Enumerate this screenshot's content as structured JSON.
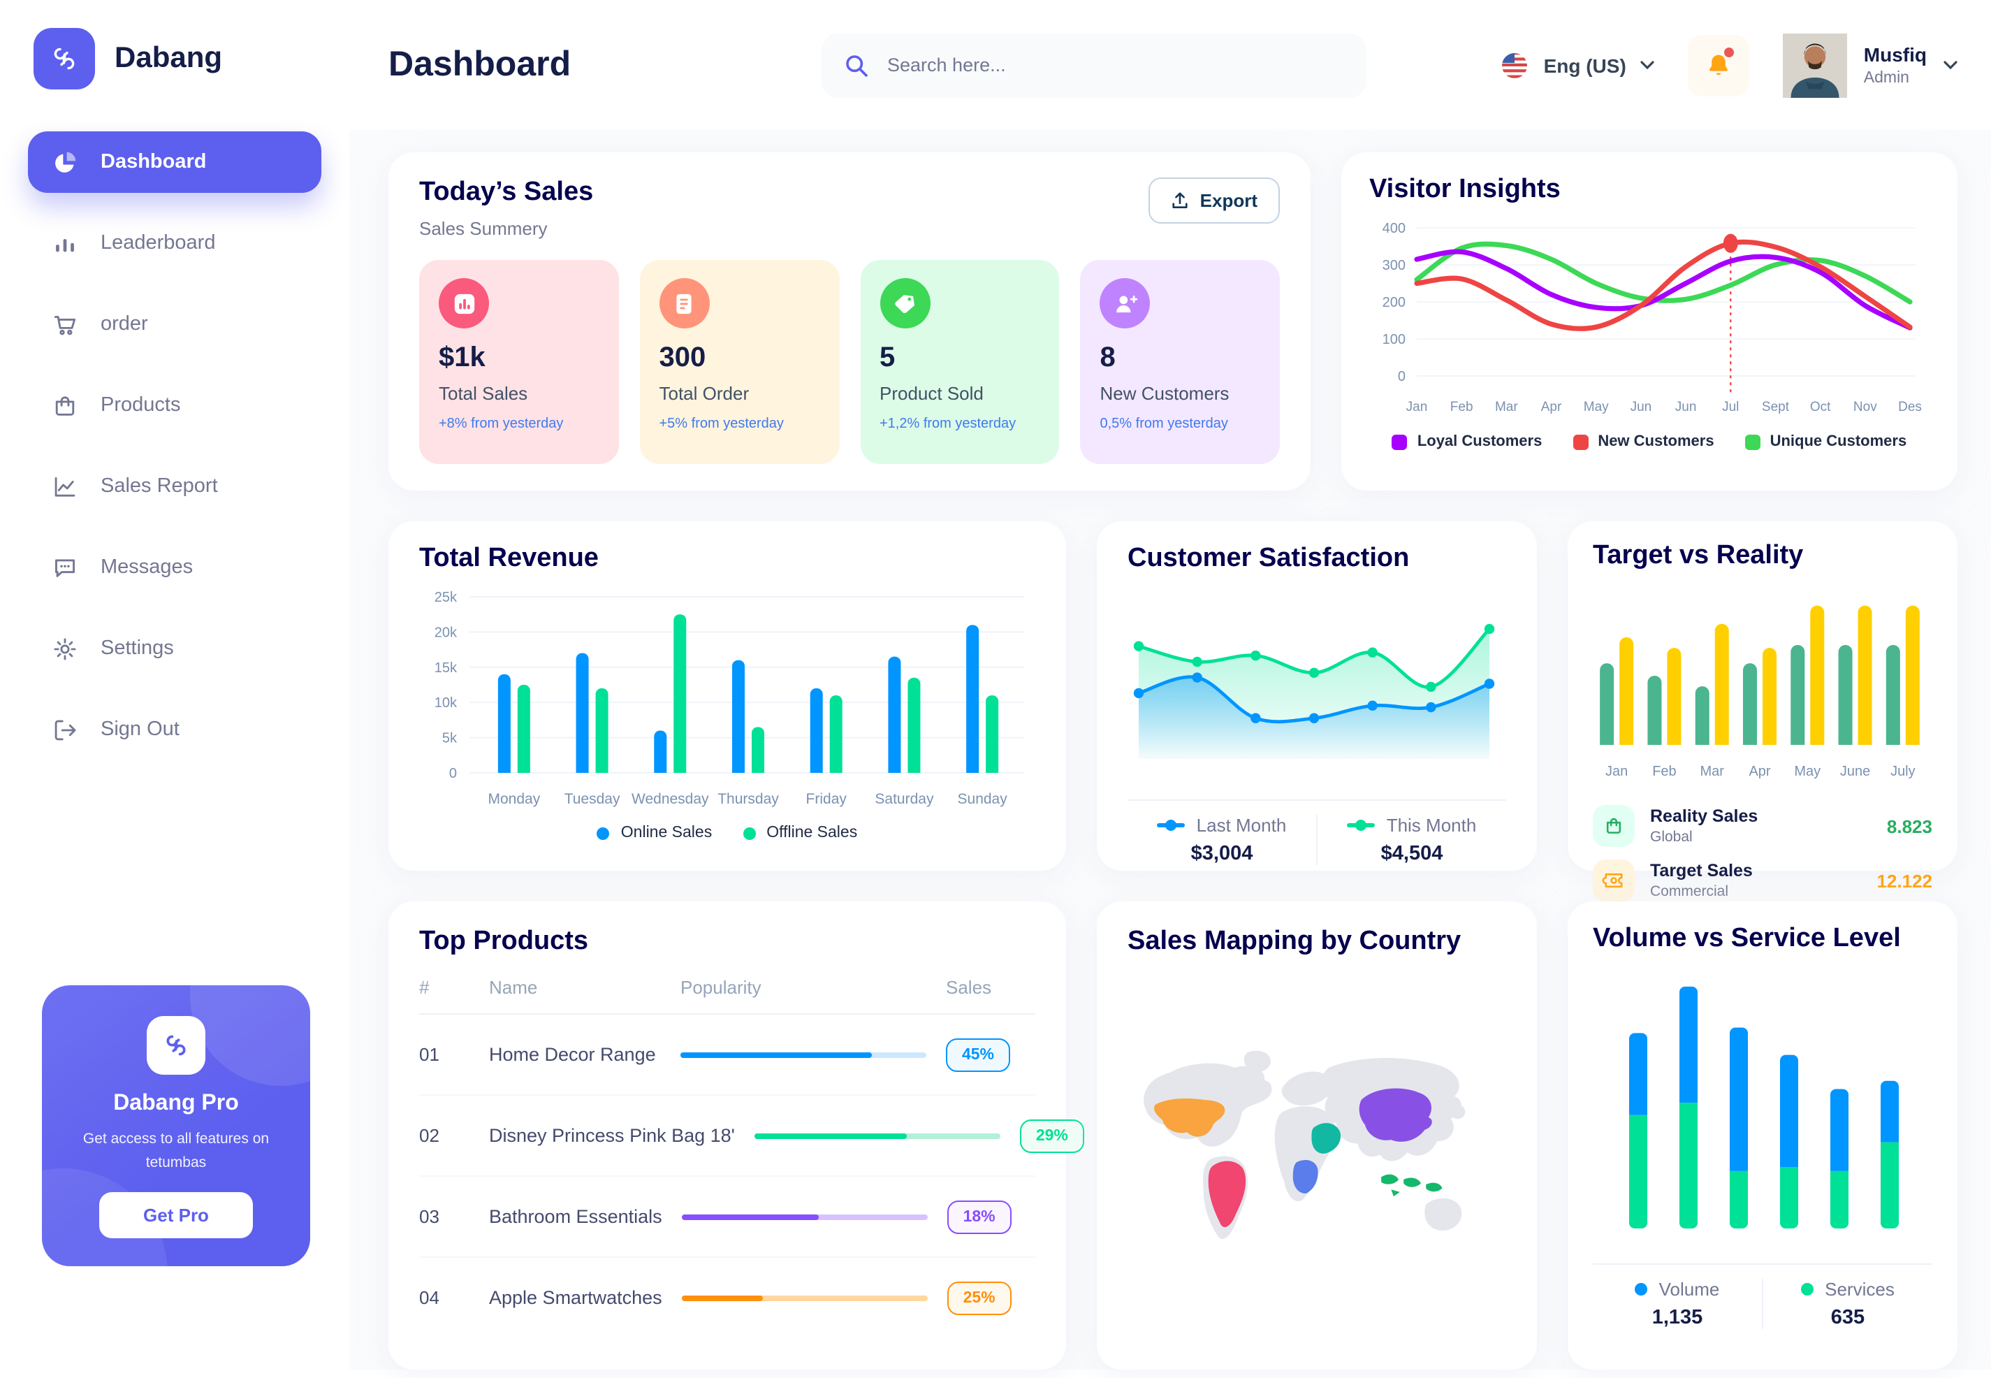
{
  "app": {
    "brand": "Dabang"
  },
  "header": {
    "title": "Dashboard",
    "search_placeholder": "Search here...",
    "language": "Eng (US)",
    "user": {
      "name": "Musfiq",
      "role": "Admin"
    }
  },
  "sidebar": {
    "items": [
      {
        "label": "Dashboard",
        "icon": "dashboard-icon",
        "active": true
      },
      {
        "label": "Leaderboard",
        "icon": "leaderboard-icon",
        "active": false
      },
      {
        "label": "order",
        "icon": "cart-icon",
        "active": false
      },
      {
        "label": "Products",
        "icon": "bag-icon",
        "active": false
      },
      {
        "label": "Sales Report",
        "icon": "line-chart-icon",
        "active": false
      },
      {
        "label": "Messages",
        "icon": "message-icon",
        "active": false
      },
      {
        "label": "Settings",
        "icon": "gear-icon",
        "active": false
      },
      {
        "label": "Sign Out",
        "icon": "signout-icon",
        "active": false
      }
    ],
    "pro": {
      "title": "Dabang Pro",
      "desc": "Get access to all features on tetumbas",
      "button": "Get Pro"
    }
  },
  "todays_sales": {
    "title": "Today’s Sales",
    "subtitle": "Sales Summery",
    "export_label": "Export",
    "cards": [
      {
        "icon": "sales-stat-icon",
        "value": "$1k",
        "label": "Total Sales",
        "delta": "+8% from yesterday",
        "bg": "#FFE2E5",
        "icon_bg": "#FA5A7D",
        "delta_color": "#4079ED"
      },
      {
        "icon": "order-stat-icon",
        "value": "300",
        "label": "Total Order",
        "delta": "+5% from yesterday",
        "bg": "#FFF4DE",
        "icon_bg": "#FF947A",
        "delta_color": "#4079ED"
      },
      {
        "icon": "product-stat-icon",
        "value": "5",
        "label": "Product Sold",
        "delta": "+1,2% from yesterday",
        "bg": "#DCFCE7",
        "icon_bg": "#3CD856",
        "delta_color": "#4079ED"
      },
      {
        "icon": "customer-stat-icon",
        "value": "8",
        "label": "New Customers",
        "delta": "0,5% from yesterday",
        "bg": "#F3E8FF",
        "icon_bg": "#BF83FF",
        "delta_color": "#4079ED"
      }
    ]
  },
  "chart_data": [
    {
      "id": "visitor_insights",
      "type": "line",
      "title": "Visitor Insights",
      "x": [
        "Jan",
        "Feb",
        "Mar",
        "Apr",
        "May",
        "Jun",
        "Jun",
        "Jul",
        "Sept",
        "Oct",
        "Nov",
        "Des"
      ],
      "ylim": [
        0,
        400
      ],
      "yticks": [
        0,
        100,
        200,
        300,
        400
      ],
      "grid": true,
      "legend_position": "bottom",
      "series": [
        {
          "name": "Loyal Customers",
          "color": "#A700FF",
          "values": [
            315,
            335,
            290,
            220,
            185,
            190,
            250,
            310,
            320,
            280,
            190,
            130
          ]
        },
        {
          "name": "New Customers",
          "color": "#EF4444",
          "values": [
            250,
            262,
            205,
            140,
            132,
            190,
            295,
            358,
            348,
            295,
            215,
            132
          ]
        },
        {
          "name": "Unique Customers",
          "color": "#3CD856",
          "values": [
            260,
            345,
            352,
            315,
            250,
            210,
            207,
            245,
            300,
            312,
            270,
            200
          ]
        }
      ],
      "marker": {
        "series": 1,
        "index": 7
      }
    },
    {
      "id": "total_revenue",
      "type": "bar",
      "title": "Total Revenue",
      "categories": [
        "Monday",
        "Tuesday",
        "Wednesday",
        "Thursday",
        "Friday",
        "Saturday",
        "Sunday"
      ],
      "ylim": [
        0,
        25
      ],
      "yticks": [
        0,
        5,
        10,
        15,
        20,
        25
      ],
      "ytick_labels": [
        "0",
        "5k",
        "10k",
        "15k",
        "20k",
        "25k"
      ],
      "grid": true,
      "legend_position": "bottom",
      "series": [
        {
          "name": "Online Sales",
          "color": "#0095FF",
          "values": [
            14,
            17,
            6,
            16,
            12,
            16.5,
            21
          ]
        },
        {
          "name": "Offline Sales",
          "color": "#00E096",
          "values": [
            12.5,
            12,
            22.5,
            6.5,
            11,
            13.5,
            11
          ]
        }
      ]
    },
    {
      "id": "customer_satisfaction",
      "type": "area",
      "title": "Customer Satisfaction",
      "ylim": [
        0,
        100
      ],
      "legend_position": "bottom",
      "series": [
        {
          "name": "Last Month",
          "color": "#0095FF",
          "total": "$3,004",
          "values": [
            42,
            52,
            26,
            26,
            34,
            33,
            48
          ]
        },
        {
          "name": "This Month",
          "color": "#00E096",
          "total": "$4,504",
          "values": [
            72,
            62,
            66,
            55,
            68,
            46,
            83
          ]
        }
      ]
    },
    {
      "id": "target_vs_reality",
      "type": "bar",
      "title": "Target vs Reality",
      "categories": [
        "Jan",
        "Feb",
        "Mar",
        "Apr",
        "May",
        "June",
        "July"
      ],
      "ylim": [
        0,
        16
      ],
      "legend_position": "bottom",
      "series": [
        {
          "name": "Reality Sales",
          "subtitle": "Global",
          "color": "#4AB58E",
          "value_color": "#27AE60",
          "icon_bg": "#E2FFF3",
          "total": "8.823",
          "values": [
            8.5,
            7.2,
            6.1,
            8.5,
            10.4,
            10.4,
            10.4
          ]
        },
        {
          "name": "Target Sales",
          "subtitle": "Commercial",
          "color": "#FFCF00",
          "value_color": "#FFA412",
          "icon_bg": "#FFF4DE",
          "total": "12.122",
          "values": [
            11.2,
            10.1,
            12.6,
            10.1,
            14.5,
            14.5,
            14.5
          ]
        }
      ]
    },
    {
      "id": "top_products",
      "type": "table",
      "title": "Top Products",
      "headers": [
        "#",
        "Name",
        "Popularity",
        "Sales"
      ],
      "rows": [
        {
          "num": "01",
          "name": "Home Decor Range",
          "popularity": 78,
          "sales": "45%",
          "color": "#0095FF",
          "track": "#CDE7FF",
          "badge_bg": "#F0F9FF"
        },
        {
          "num": "02",
          "name": "Disney Princess Pink Bag 18'",
          "popularity": 62,
          "sales": "29%",
          "color": "#00E096",
          "track": "#B3F0D7",
          "badge_bg": "#F0FDF6"
        },
        {
          "num": "03",
          "name": "Bathroom Essentials",
          "popularity": 56,
          "sales": "18%",
          "color": "#884DFF",
          "track": "#D7C2FF",
          "badge_bg": "#FAF5FF"
        },
        {
          "num": "04",
          "name": "Apple Smartwatches",
          "popularity": 33,
          "sales": "25%",
          "color": "#FF8F0D",
          "track": "#FFD79F",
          "badge_bg": "#FFF8EC"
        }
      ]
    },
    {
      "id": "sales_mapping",
      "type": "map",
      "title": "Sales Mapping by Country",
      "countries": [
        {
          "id": "usa",
          "name": "United States",
          "color": "#F9A43F"
        },
        {
          "id": "brazil",
          "name": "Brazil",
          "color": "#F0466F"
        },
        {
          "id": "saudi",
          "name": "Saudi Arabia",
          "color": "#12B8A2"
        },
        {
          "id": "congo",
          "name": "DR Congo",
          "color": "#5A7DEB"
        },
        {
          "id": "china",
          "name": "China",
          "color": "#8950E6"
        },
        {
          "id": "indonesia",
          "name": "Indonesia",
          "color": "#14B86B"
        }
      ]
    },
    {
      "id": "volume_service",
      "type": "stacked-bar",
      "title": "Volume vs Service Level",
      "ylim": [
        0,
        18
      ],
      "legend_position": "bottom",
      "series": [
        {
          "name": "Volume",
          "color": "#0095FF",
          "total": "1,135",
          "values": [
            6,
            8.5,
            10.5,
            8.2,
            6,
            4.5
          ]
        },
        {
          "name": "Services",
          "color": "#00E096",
          "total": "635",
          "values": [
            8.3,
            9.2,
            4.2,
            4.5,
            4.2,
            6.3
          ]
        }
      ]
    }
  ]
}
